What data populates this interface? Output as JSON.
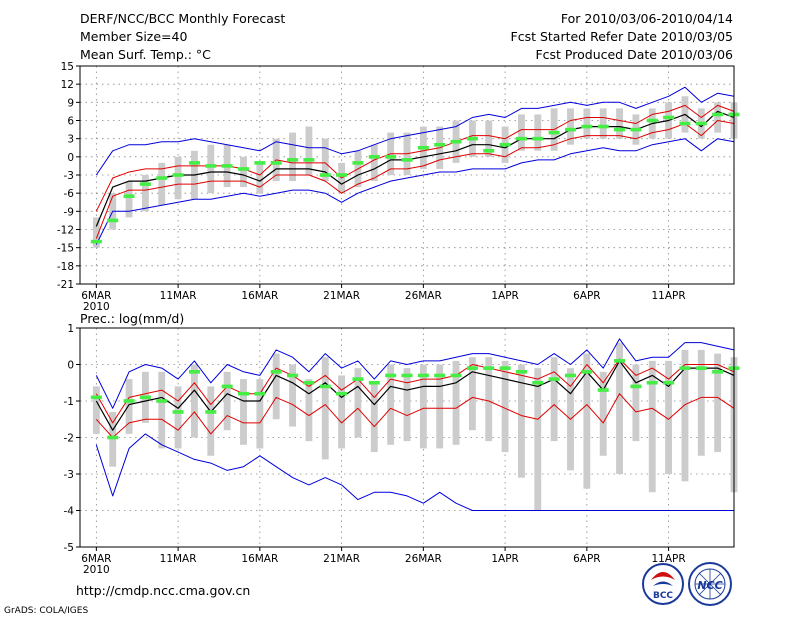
{
  "header": {
    "title": "DERF/NCC/BCC Monthly Forecast",
    "member_size": "Member Size=40",
    "variable": "Mean Surf. Temp.: °C",
    "period": "For 2010/03/06-2010/04/14",
    "started": "Fcst Started Refer Date 2010/03/05",
    "produced": "Fcst Produced Date 2010/03/06"
  },
  "footer": {
    "url": "http://cmdp.ncc.cma.gov.cn",
    "grads": "GrADS: COLA/IGES",
    "logo_left": "BCC",
    "logo_right": "NCC"
  },
  "colors": {
    "ensemble_mean": "#000000",
    "mean_plus_minus_std": "#e00000",
    "max_min_envelope": "#0000dd",
    "observation_marker": "#44ee44",
    "member_spread_box": "#cccccc",
    "grid": "#888888"
  },
  "chart_data": [
    {
      "type": "line",
      "title": "Mean Surf. Temp.: °C",
      "ylim": [
        -21,
        15
      ],
      "yticks": [
        15,
        12,
        9,
        6,
        3,
        0,
        -3,
        -6,
        -9,
        -12,
        -15,
        -18,
        -21
      ],
      "xlim": [
        0,
        40
      ],
      "xticks": [
        {
          "day": 1,
          "label": "6MAR",
          "sub": "2010"
        },
        {
          "day": 6,
          "label": "11MAR"
        },
        {
          "day": 11,
          "label": "16MAR"
        },
        {
          "day": 16,
          "label": "21MAR"
        },
        {
          "day": 21,
          "label": "26MAR"
        },
        {
          "day": 26,
          "label": "1APR"
        },
        {
          "day": 31,
          "label": "6APR"
        },
        {
          "day": 36,
          "label": "11APR"
        }
      ],
      "days": [
        1,
        2,
        3,
        4,
        5,
        6,
        7,
        8,
        9,
        10,
        11,
        12,
        13,
        14,
        15,
        16,
        17,
        18,
        19,
        20,
        21,
        22,
        23,
        24,
        25,
        26,
        27,
        28,
        29,
        30,
        31,
        32,
        33,
        34,
        35,
        36,
        37,
        38,
        39,
        40
      ],
      "mean": [
        -11.5,
        -5,
        -4,
        -4,
        -3.5,
        -3,
        -3,
        -2.5,
        -2.5,
        -3,
        -4,
        -2,
        -2,
        -2,
        -2.5,
        -4.5,
        -3,
        -2,
        -0.5,
        -0.5,
        0,
        0.5,
        1,
        2,
        2,
        1.5,
        3,
        3,
        3,
        4.5,
        5,
        5,
        5,
        4.5,
        5.5,
        6,
        7,
        5,
        7.5,
        6.5
      ],
      "upper_std": [
        -9,
        -3.5,
        -2.5,
        -2,
        -2,
        -1.5,
        -1.5,
        -1.5,
        -1.5,
        -2,
        -3,
        -0.5,
        -1,
        -1,
        -1,
        -3.5,
        -2,
        -0.5,
        0.5,
        0.5,
        1,
        1.5,
        2.5,
        3.5,
        3.5,
        3,
        4.5,
        4.5,
        4.5,
        6,
        6.5,
        6.5,
        6,
        5.5,
        7,
        7.5,
        8.5,
        6.5,
        8.5,
        7.5
      ],
      "lower_std": [
        -13.5,
        -6.5,
        -5.5,
        -5.5,
        -5,
        -4.5,
        -4.5,
        -4,
        -4,
        -4,
        -5,
        -3,
        -3,
        -3,
        -4,
        -6,
        -4.5,
        -3.5,
        -2,
        -2,
        -1.5,
        -0.5,
        0,
        0.5,
        0.5,
        0,
        1.5,
        1.5,
        2,
        3,
        3.5,
        3.5,
        3.5,
        3,
        4,
        4.5,
        5.5,
        3.5,
        6,
        5.5
      ],
      "envelope_max": [
        -3,
        1,
        2,
        2,
        2.5,
        2.5,
        3,
        2.5,
        2,
        1.5,
        1,
        2.5,
        2,
        1.5,
        1.5,
        0.5,
        1,
        2,
        3,
        3.5,
        4,
        4.5,
        5,
        6.5,
        7,
        6.5,
        8,
        8,
        8.5,
        9,
        8.5,
        9,
        9,
        8,
        9,
        10,
        11.5,
        9,
        10.5,
        10
      ],
      "envelope_min": [
        -14.5,
        -9,
        -9,
        -8.5,
        -8,
        -7.5,
        -7,
        -7,
        -6.5,
        -6,
        -6.5,
        -6,
        -5.5,
        -5.5,
        -6,
        -7.5,
        -6,
        -5,
        -4,
        -3.5,
        -3,
        -2.5,
        -2.5,
        -2,
        -2,
        -2,
        -1,
        -0.5,
        -0.5,
        0.5,
        1,
        1.5,
        1,
        1,
        2,
        2.5,
        3,
        1,
        3,
        2.5
      ],
      "box_top": [
        -10,
        -6,
        -4,
        -3,
        -1,
        0,
        1,
        2,
        2,
        0,
        -1,
        3,
        4,
        5,
        3,
        -1,
        1,
        2,
        4,
        4,
        5,
        5,
        6,
        6,
        6,
        5,
        7,
        7,
        8,
        8,
        8,
        8,
        8,
        7,
        8,
        9,
        10,
        8,
        9,
        9
      ],
      "box_bottom": [
        -15,
        -12,
        -10,
        -9,
        -8,
        -7,
        -7,
        -6,
        -5,
        -5,
        -6,
        -4,
        -4,
        -3,
        -4,
        -6,
        -5,
        -4,
        -3,
        -3,
        -2,
        -2,
        -1,
        0,
        0,
        -1,
        1,
        1,
        1,
        2,
        3,
        3,
        3,
        2,
        3,
        3,
        4,
        3,
        4,
        3
      ],
      "observation": [
        -14,
        -10.5,
        -6.5,
        -4.5,
        -3.5,
        -3,
        -1,
        -1.5,
        -1.5,
        -2,
        -1,
        -1,
        -0.5,
        -0.5,
        -3,
        -3,
        -1,
        0,
        0,
        -0.5,
        1.5,
        2,
        2.5,
        3,
        1,
        2,
        3,
        3,
        4,
        4.5,
        5,
        5,
        4.5,
        4.5,
        6,
        6.5,
        5.5,
        5.5,
        7,
        7
      ]
    },
    {
      "type": "line",
      "title": "Prec.: log(mm/d)",
      "ylim": [
        -5,
        1
      ],
      "yticks": [
        1,
        0,
        -1,
        -2,
        -3,
        -4,
        -5
      ],
      "xlim": [
        0,
        40
      ],
      "xticks": [
        {
          "day": 1,
          "label": "6MAR",
          "sub": "2010"
        },
        {
          "day": 6,
          "label": "11MAR"
        },
        {
          "day": 11,
          "label": "16MAR"
        },
        {
          "day": 16,
          "label": "21MAR"
        },
        {
          "day": 21,
          "label": "26MAR"
        },
        {
          "day": 26,
          "label": "1APR"
        },
        {
          "day": 31,
          "label": "6APR"
        },
        {
          "day": 36,
          "label": "11APR"
        }
      ],
      "days": [
        1,
        2,
        3,
        4,
        5,
        6,
        7,
        8,
        9,
        10,
        11,
        12,
        13,
        14,
        15,
        16,
        17,
        18,
        19,
        20,
        21,
        22,
        23,
        24,
        25,
        26,
        27,
        28,
        29,
        30,
        31,
        32,
        33,
        34,
        35,
        36,
        37,
        38,
        39,
        40
      ],
      "mean": [
        -1,
        -1.8,
        -1.1,
        -1,
        -0.9,
        -1.2,
        -0.7,
        -1.3,
        -0.8,
        -1,
        -1,
        -0.3,
        -0.5,
        -0.8,
        -0.5,
        -0.9,
        -0.6,
        -1.1,
        -0.6,
        -0.7,
        -0.6,
        -0.6,
        -0.5,
        -0.2,
        -0.3,
        -0.4,
        -0.5,
        -0.6,
        -0.4,
        -0.8,
        -0.2,
        -0.7,
        0.1,
        -0.5,
        -0.3,
        -0.6,
        -0.1,
        -0.1,
        -0.1,
        -0.3
      ],
      "upper_std": [
        -0.8,
        -1.6,
        -0.9,
        -0.8,
        -0.7,
        -1,
        -0.5,
        -1.1,
        -0.6,
        -0.8,
        -0.8,
        -0.1,
        -0.3,
        -0.6,
        -0.3,
        -0.7,
        -0.4,
        -0.9,
        -0.4,
        -0.5,
        -0.4,
        -0.4,
        -0.3,
        0,
        -0.1,
        -0.2,
        -0.3,
        -0.4,
        -0.2,
        -0.6,
        0,
        -0.5,
        0.15,
        -0.3,
        -0.1,
        -0.4,
        0,
        0,
        0,
        -0.2
      ],
      "lower_std": [
        -1.5,
        -2,
        -1.6,
        -1.5,
        -1.5,
        -1.8,
        -1.3,
        -1.9,
        -1.4,
        -1.6,
        -1.6,
        -0.9,
        -1.1,
        -1.4,
        -1.1,
        -1.6,
        -1.2,
        -1.7,
        -1.2,
        -1.4,
        -1.2,
        -1.2,
        -1.2,
        -0.9,
        -1,
        -1.2,
        -1.4,
        -1.5,
        -1.1,
        -1.5,
        -1.1,
        -1.6,
        -0.8,
        -1.3,
        -1.2,
        -1.5,
        -1.1,
        -0.9,
        -0.9,
        -1.2
      ],
      "envelope_max": [
        -0.3,
        -1.2,
        -0.2,
        0,
        -0.1,
        -0.4,
        0.1,
        -0.5,
        0,
        -0.2,
        -0.3,
        0.4,
        0.2,
        -0.2,
        0.3,
        -0.1,
        0.1,
        -0.4,
        0.1,
        0,
        0.1,
        0.1,
        0.2,
        0.3,
        0.3,
        0.2,
        0.1,
        0,
        0.3,
        0,
        0.4,
        -0.1,
        0.7,
        0.1,
        0.2,
        0.2,
        0.6,
        0.6,
        0.5,
        0.4
      ],
      "envelope_min": [
        -2.2,
        -3.6,
        -2.3,
        -1.9,
        -2.2,
        -2.4,
        -2.6,
        -2.7,
        -2.9,
        -2.8,
        -2.5,
        -2.8,
        -3.1,
        -3.3,
        -3.1,
        -3.3,
        -3.7,
        -3.5,
        -3.5,
        -3.6,
        -3.8,
        -3.5,
        -3.8,
        -4,
        -4,
        -4,
        -4,
        -4,
        -4,
        -4,
        -4,
        -4,
        -4,
        -4,
        -4,
        -4,
        -4,
        -4,
        -4,
        -4
      ],
      "box_top": [
        -0.6,
        -1.3,
        -0.4,
        -0.2,
        -0.2,
        -0.6,
        0,
        -0.6,
        -0.2,
        -0.4,
        -0.4,
        0.3,
        0,
        -0.4,
        0.2,
        -0.3,
        -0.1,
        -0.5,
        0,
        -0.1,
        0,
        0,
        0.1,
        0.2,
        0.2,
        0.1,
        0,
        -0.1,
        0.2,
        -0.1,
        0.3,
        -0.2,
        0.6,
        0,
        0.1,
        0.1,
        0.4,
        0.4,
        0.3,
        0.2
      ],
      "box_bottom": [
        -1.9,
        -2.8,
        -1.9,
        -1.6,
        -2.3,
        -2.3,
        -2,
        -2.5,
        -1.8,
        -2.2,
        -2.3,
        -1.5,
        -1.7,
        -2.1,
        -2.6,
        -2.3,
        -2,
        -2.4,
        -2.2,
        -2.1,
        -2.3,
        -2.3,
        -2.2,
        -1.8,
        -2.1,
        -2.4,
        -3.1,
        -4,
        -2.1,
        -2.9,
        -3.4,
        -2.5,
        -3,
        -2.1,
        -3.5,
        -3,
        -3.2,
        -2.5,
        -2.4,
        -3.5
      ],
      "observation": [
        -0.9,
        -2,
        -1,
        -0.9,
        -1,
        -1.3,
        -0.2,
        -1.3,
        -0.6,
        -0.8,
        -0.8,
        -0.2,
        -0.3,
        -0.5,
        -0.6,
        -0.8,
        -0.4,
        -0.5,
        -0.3,
        -0.3,
        -0.3,
        -0.3,
        -0.3,
        -0.1,
        -0.1,
        -0.1,
        -0.2,
        -0.5,
        -0.4,
        -0.3,
        -0.2,
        -0.7,
        0.1,
        -0.6,
        -0.5,
        -0.5,
        -0.1,
        -0.1,
        -0.2,
        -0.1
      ]
    }
  ]
}
